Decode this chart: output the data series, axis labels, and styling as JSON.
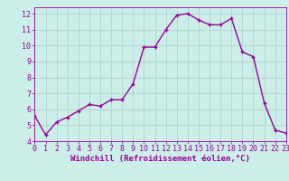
{
  "x": [
    0,
    1,
    2,
    3,
    4,
    5,
    6,
    7,
    8,
    9,
    10,
    11,
    12,
    13,
    14,
    15,
    16,
    17,
    18,
    19,
    20,
    21,
    22,
    23
  ],
  "y": [
    5.6,
    4.4,
    5.2,
    5.5,
    5.9,
    6.3,
    6.2,
    6.6,
    6.6,
    7.6,
    9.9,
    9.9,
    11.0,
    11.9,
    12.0,
    11.6,
    11.3,
    11.3,
    11.7,
    9.6,
    9.3,
    6.4,
    4.7,
    4.5
  ],
  "line_color": "#990099",
  "marker": "+",
  "marker_size": 3,
  "bg_color": "#cceee8",
  "grid_color": "#aacccc",
  "xlabel": "Windchill (Refroidissement éolien,°C)",
  "xlabel_color": "#990099",
  "tick_color": "#990099",
  "ylim": [
    4,
    12.4
  ],
  "xlim": [
    0,
    23
  ],
  "yticks": [
    4,
    5,
    6,
    7,
    8,
    9,
    10,
    11,
    12
  ],
  "xticks": [
    0,
    1,
    2,
    3,
    4,
    5,
    6,
    7,
    8,
    9,
    10,
    11,
    12,
    13,
    14,
    15,
    16,
    17,
    18,
    19,
    20,
    21,
    22,
    23
  ],
  "linewidth": 1.0,
  "tick_fontsize": 6,
  "xlabel_fontsize": 6.5
}
